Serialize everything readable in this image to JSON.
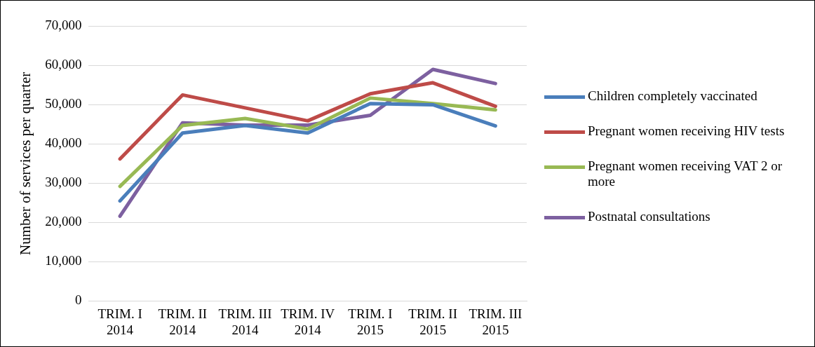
{
  "chart_data": {
    "type": "line",
    "ylabel": "Number of services per quarter",
    "categories": [
      "TRIM. I 2014",
      "TRIM. II 2014",
      "TRIM. III 2014",
      "TRIM. IV 2014",
      "TRIM. I 2015",
      "TRIM. II 2015",
      "TRIM. III 2015"
    ],
    "series": [
      {
        "name": "Children completely vaccinated",
        "color": "#4a7ebb",
        "values": [
          25500,
          42800,
          44700,
          42800,
          50300,
          50000,
          44600
        ]
      },
      {
        "name": "Pregnant women receiving HIV tests",
        "color": "#be4b48",
        "values": [
          36200,
          52500,
          49200,
          45900,
          52800,
          55600,
          49600
        ]
      },
      {
        "name": "Pregnant women receiving VAT 2 or more",
        "color": "#98b954",
        "values": [
          29200,
          44700,
          46500,
          43800,
          51700,
          50300,
          48700
        ]
      },
      {
        "name": "Postnatal consultations",
        "color": "#7d60a0",
        "values": [
          21600,
          45400,
          44800,
          44800,
          47300,
          59000,
          55400
        ]
      }
    ],
    "ylim": [
      0,
      70000
    ],
    "yticks": [
      0,
      {
        "value": 10000,
        "label": "10,000"
      },
      {
        "value": 20000,
        "label": "20,000"
      },
      {
        "value": 30000,
        "label": "30,000"
      },
      {
        "value": 40000,
        "label": "40,000"
      },
      {
        "value": 50000,
        "label": "50,000"
      },
      {
        "value": 60000,
        "label": "60,000"
      },
      {
        "value": 70000,
        "label": "70,000"
      }
    ],
    "grid": "y",
    "legend": "right",
    "marker": "none",
    "line_style": "solid"
  }
}
